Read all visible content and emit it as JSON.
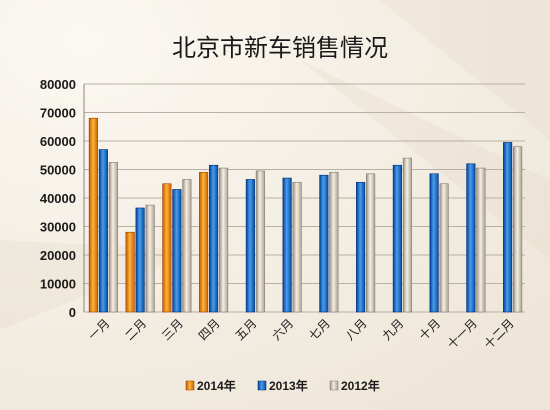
{
  "chart_data": {
    "type": "bar",
    "title": "北京市新车销售情况",
    "categories": [
      "一月",
      "二月",
      "三月",
      "四月",
      "五月",
      "六月",
      "七月",
      "八月",
      "九月",
      "十月",
      "十一月",
      "十二月"
    ],
    "series": [
      {
        "name": "2014年",
        "color": "#e8860f",
        "values": [
          68000,
          28000,
          45000,
          49000,
          null,
          null,
          null,
          null,
          null,
          null,
          null,
          null
        ]
      },
      {
        "name": "2013年",
        "color": "#1f6fc0",
        "values": [
          57000,
          36500,
          43000,
          51500,
          46500,
          47000,
          48000,
          45500,
          51500,
          48500,
          52000,
          59500
        ]
      },
      {
        "name": "2012年",
        "color": "#c9c1b4",
        "values": [
          52500,
          37500,
          46500,
          50500,
          49500,
          45500,
          49000,
          48500,
          54000,
          45000,
          50500,
          58000
        ]
      }
    ],
    "ylim": [
      0,
      80000
    ],
    "yticks": [
      0,
      10000,
      20000,
      30000,
      40000,
      50000,
      60000,
      70000,
      80000
    ],
    "grid": true,
    "legend_position": "bottom",
    "xlabel": "",
    "ylabel": ""
  }
}
